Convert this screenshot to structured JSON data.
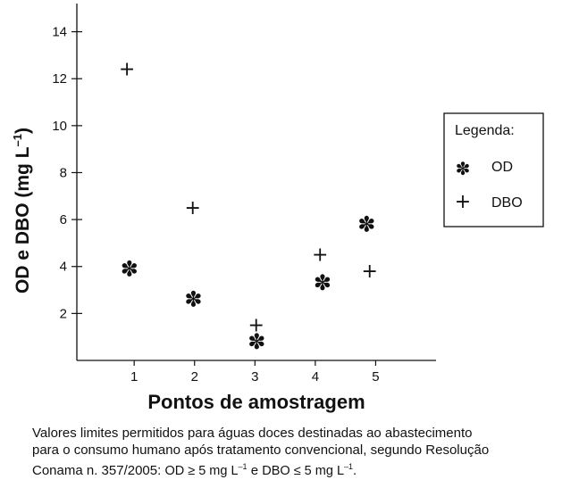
{
  "chart_data": {
    "type": "scatter",
    "xlabel": "Pontos de amostragem",
    "ylabel_main": "OD e DBO (mg L",
    "ylabel_sup": "–1",
    "ylabel_close": ")",
    "xticks": [
      "1",
      "2",
      "3",
      "4",
      "5"
    ],
    "yticks": [
      "2",
      "4",
      "6",
      "8",
      "10",
      "12",
      "14"
    ],
    "xlim": [
      0.05,
      6.0
    ],
    "ylim": [
      0,
      15.2
    ],
    "legend": {
      "title": "Legenda:",
      "position": "right",
      "entries": [
        {
          "label": "OD",
          "marker": "✽"
        },
        {
          "label": "DBO",
          "marker": "+"
        }
      ]
    },
    "series": [
      {
        "name": "OD",
        "marker": "✽",
        "points": [
          {
            "x": 0.92,
            "y": 3.9
          },
          {
            "x": 1.98,
            "y": 2.6
          },
          {
            "x": 3.03,
            "y": 0.8
          },
          {
            "x": 4.12,
            "y": 3.3
          },
          {
            "x": 4.85,
            "y": 5.8
          }
        ]
      },
      {
        "name": "DBO",
        "marker": "+",
        "points": [
          {
            "x": 0.88,
            "y": 12.4
          },
          {
            "x": 1.97,
            "y": 6.5
          },
          {
            "x": 3.02,
            "y": 1.5
          },
          {
            "x": 4.08,
            "y": 4.5
          },
          {
            "x": 4.9,
            "y": 3.8
          }
        ]
      }
    ]
  },
  "caption": {
    "line1": "Valores limites permitidos para águas doces destinadas ao abastecimento",
    "line2": "para o consumo humano após tratamento convencional, segundo Resolução",
    "line3_start": "Conama n. 357/2005:",
    "od_part": "OD ≥ 5 mg L",
    "sup": "–1",
    "connector": " e ",
    "dbo_part": "DBO ≤ 5 mg L",
    "end": "."
  }
}
